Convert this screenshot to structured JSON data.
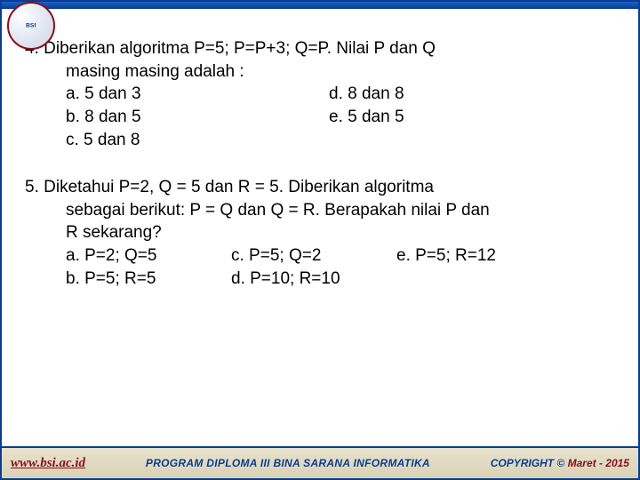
{
  "logo": {
    "line1": "BINA",
    "line2": "SARANA",
    "line3": "INFORMATIKA",
    "sub": "BSI"
  },
  "q4": {
    "number": "4.",
    "text1": "Diberikan algoritma P=5; P=P+3; Q=P.  Nilai P dan Q",
    "text2": "masing masing adalah :",
    "a": "a. 5 dan 3",
    "b": "b. 8 dan 5",
    "c": "c. 5 dan 8",
    "d": "d. 8 dan 8",
    "e": "e. 5 dan 5"
  },
  "q5": {
    "number": "5.",
    "text1": "Diketahui P=2, Q = 5 dan R = 5. Diberikan algoritma",
    "text2": "sebagai berikut: P = Q dan Q = R. Berapakah nilai P dan",
    "text3": "R sekarang?",
    "a": "a. P=2; Q=5",
    "b": "b. P=5; R=5",
    "c": "c. P=5; Q=2",
    "d": "d. P=10; R=10",
    "e": "e. P=5; R=12"
  },
  "footer": {
    "url": "www.bsi.ac.id",
    "center": "PROGRAM DIPLOMA III BINA SARANA INFORMATIKA",
    "copyright": "COPYRIGHT",
    "symbol": "©",
    "date": "Maret - 2015"
  },
  "colors": {
    "brand_blue": "#0a3d8f",
    "brand_red": "#8a0e1a",
    "footer_bg1": "#e9e3cf",
    "footer_bg2": "#d9d1b4"
  }
}
